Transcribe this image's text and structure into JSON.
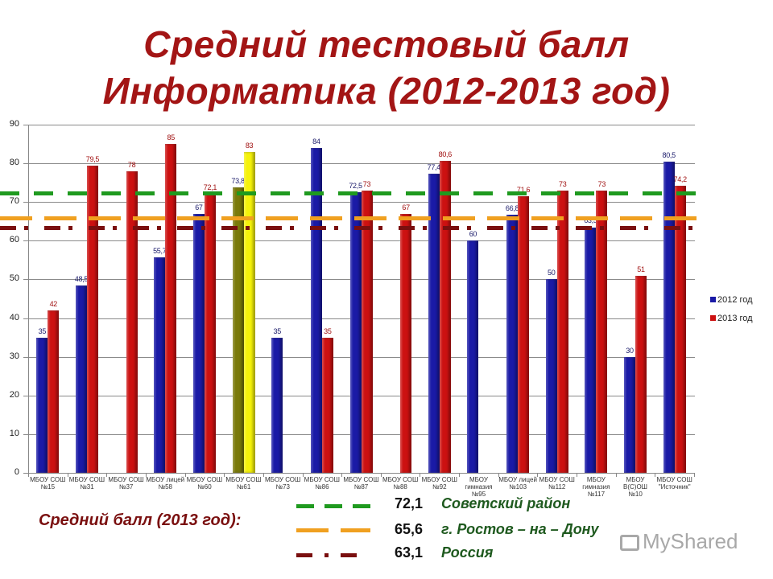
{
  "title": {
    "line1": "Средний тестовый балл",
    "line2": "Информатика (2012-2013 год)"
  },
  "chart_data": {
    "type": "bar",
    "title": "Средний тестовый балл Информатика (2012-2013 год)",
    "xlabel": "",
    "ylabel": "",
    "ylim": [
      0,
      90
    ],
    "yticks": [
      0,
      10,
      20,
      30,
      40,
      50,
      60,
      70,
      80,
      90
    ],
    "grid": true,
    "legend_position": "right",
    "categories": [
      "МБОУ СОШ №15",
      "МБОУ СОШ №31",
      "МБОУ СОШ №37",
      "МБОУ лицей №58",
      "МБОУ СОШ №60",
      "МБОУ СОШ №61",
      "МБОУ СОШ №73",
      "МБОУ СОШ №86",
      "МБОУ СОШ №87",
      "МБОУ СОШ №88",
      "МБОУ СОШ №92",
      "МБОУ гимназия №95",
      "МБОУ лицей №103",
      "МБОУ СОШ №112",
      "МБОУ гимназия №117",
      "МБОУ В(С)ОШ №10",
      "МБОУ СОШ \"Источник\""
    ],
    "category_lines": [
      [
        "МБОУ СОШ",
        "№15"
      ],
      [
        "МБОУ СОШ",
        "№31"
      ],
      [
        "МБОУ СОШ",
        "№37"
      ],
      [
        "МБОУ лицей",
        "№58"
      ],
      [
        "МБОУ СОШ",
        "№60"
      ],
      [
        "МБОУ СОШ",
        "№61"
      ],
      [
        "МБОУ СОШ",
        "№73"
      ],
      [
        "МБОУ СОШ",
        "№86"
      ],
      [
        "МБОУ СОШ",
        "№87"
      ],
      [
        "МБОУ СОШ",
        "№88"
      ],
      [
        "МБОУ СОШ",
        "№92"
      ],
      [
        "МБОУ",
        "гимназия",
        "№95"
      ],
      [
        "МБОУ лицей",
        "№103"
      ],
      [
        "МБОУ СОШ",
        "№112"
      ],
      [
        "МБОУ",
        "гимназия",
        "№117"
      ],
      [
        "МБОУ",
        "В(С)ОШ",
        "№10"
      ],
      [
        "МБОУ СОШ",
        "\"Источник\""
      ]
    ],
    "series": [
      {
        "name": "2012 год",
        "color": "#1a1aa6",
        "values": [
          35,
          48.5,
          null,
          55.7,
          67,
          73.8,
          35,
          84,
          72.5,
          null,
          77.4,
          60,
          66.8,
          50,
          63.5,
          30,
          80.5
        ],
        "labels": [
          "35",
          "48,5",
          "",
          "55,7",
          "67",
          "73,8",
          "35",
          "84",
          "72,5",
          "",
          "77,4",
          "60",
          "66,8",
          "50",
          "63,5",
          "30",
          "80,5"
        ]
      },
      {
        "name": "2013 год",
        "color": "#cc1111",
        "values": [
          42,
          79.5,
          78,
          85,
          72.1,
          83,
          null,
          35,
          73,
          67,
          80.6,
          null,
          71.6,
          73,
          73,
          51,
          74.2
        ],
        "labels": [
          "42",
          "79,5",
          "78",
          "85",
          "72,1",
          "83",
          "",
          "35",
          "73",
          "67",
          "80,6",
          "",
          "71,6",
          "73",
          "73",
          "51",
          "74,2"
        ]
      }
    ],
    "highlight": {
      "category": "МБОУ СОШ №61",
      "colors_2012": "#7a7a0a",
      "colors_2013": "#f5f20a"
    },
    "reference_lines": [
      {
        "value": 72.1,
        "label": "Советский район",
        "color": "#1f9a1f",
        "style": "dashed"
      },
      {
        "value": 65.6,
        "label": "г. Ростов – на – Дону",
        "color": "#f0a020",
        "style": "long-dashed"
      },
      {
        "value": 63.1,
        "label": "Россия",
        "color": "#7a0f0f",
        "style": "dash-dot"
      }
    ]
  },
  "legend": {
    "items": [
      {
        "label": "2012 год",
        "color": "#1a1aa6"
      },
      {
        "label": "2013 год",
        "color": "#cc1111"
      }
    ]
  },
  "averages": {
    "title": "Средний балл (2013 год):",
    "rows": [
      {
        "value": "72,1",
        "label": "Советский район",
        "color": "#1f9a1f"
      },
      {
        "value": "65,6",
        "label": "г. Ростов – на – Дону",
        "color": "#f0a020"
      },
      {
        "value": "63,1",
        "label": "Россия",
        "color": "#7a0f0f"
      }
    ]
  },
  "watermark": {
    "text": "MyShared"
  }
}
